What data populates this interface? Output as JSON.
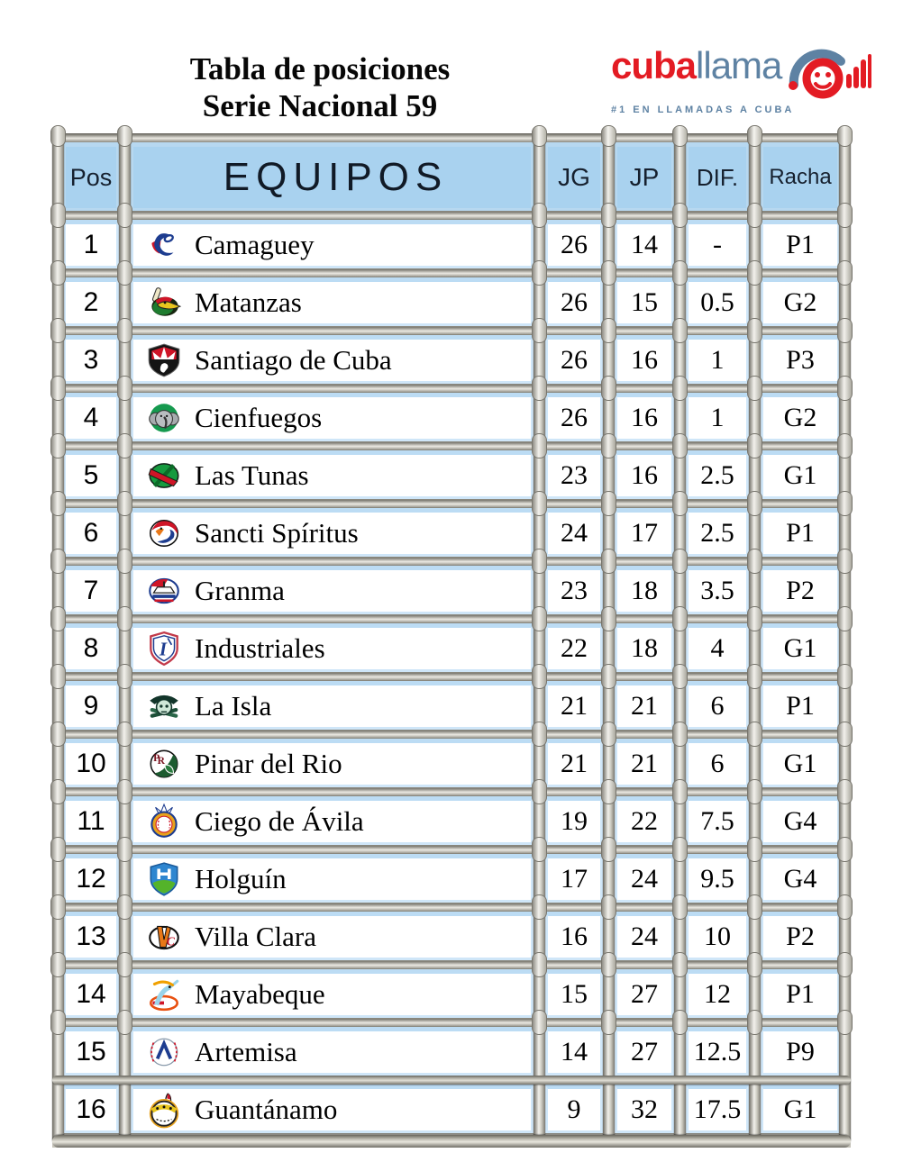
{
  "title": {
    "line1": "Tabla de posiciones",
    "line2": "Serie Nacional 59"
  },
  "brand": {
    "word_red": "cuba",
    "word_blue": "llama",
    "tagline": "#1 EN LLAMADAS A CUBA"
  },
  "colors": {
    "brand_red": "#e31b23",
    "brand_blue": "#5e82a3",
    "header_blue": "#a9d2ef",
    "frame_gray": "#c6c4ba"
  },
  "table": {
    "headers": {
      "pos": "Pos",
      "equipos": "EQUIPOS",
      "jg": "JG",
      "jp": "JP",
      "dif": "DIF.",
      "racha": "Racha"
    },
    "rows": [
      {
        "pos": "1",
        "team": "Camaguey",
        "jg": "26",
        "jp": "14",
        "dif": "-",
        "racha": "P1"
      },
      {
        "pos": "2",
        "team": "Matanzas",
        "jg": "26",
        "jp": "15",
        "dif": "0.5",
        "racha": "G2"
      },
      {
        "pos": "3",
        "team": "Santiago de Cuba",
        "jg": "26",
        "jp": "16",
        "dif": "1",
        "racha": "P3"
      },
      {
        "pos": "4",
        "team": "Cienfuegos",
        "jg": "26",
        "jp": "16",
        "dif": "1",
        "racha": "G2"
      },
      {
        "pos": "5",
        "team": "Las Tunas",
        "jg": "23",
        "jp": "16",
        "dif": "2.5",
        "racha": "G1"
      },
      {
        "pos": "6",
        "team": "Sancti Spíritus",
        "jg": "24",
        "jp": "17",
        "dif": "2.5",
        "racha": "P1"
      },
      {
        "pos": "7",
        "team": "Granma",
        "jg": "23",
        "jp": "18",
        "dif": "3.5",
        "racha": "P2"
      },
      {
        "pos": "8",
        "team": "Industriales",
        "jg": "22",
        "jp": "18",
        "dif": "4",
        "racha": "G1"
      },
      {
        "pos": "9",
        "team": "La Isla",
        "jg": "21",
        "jp": "21",
        "dif": "6",
        "racha": "P1"
      },
      {
        "pos": "10",
        "team": "Pinar del Rio",
        "jg": "21",
        "jp": "21",
        "dif": "6",
        "racha": "G1"
      },
      {
        "pos": "11",
        "team": "Ciego de Ávila",
        "jg": "19",
        "jp": "22",
        "dif": "7.5",
        "racha": "G4"
      },
      {
        "pos": "12",
        "team": "Holguín",
        "jg": "17",
        "jp": "24",
        "dif": "9.5",
        "racha": "G4"
      },
      {
        "pos": "13",
        "team": "Villa Clara",
        "jg": "16",
        "jp": "24",
        "dif": "10",
        "racha": "P2"
      },
      {
        "pos": "14",
        "team": "Mayabeque",
        "jg": "15",
        "jp": "27",
        "dif": "12",
        "racha": "P1"
      },
      {
        "pos": "15",
        "team": "Artemisa",
        "jg": "14",
        "jp": "27",
        "dif": "12.5",
        "racha": "P9"
      },
      {
        "pos": "16",
        "team": "Guantánamo",
        "jg": "9",
        "jp": "32",
        "dif": "17.5",
        "racha": "G1"
      }
    ]
  },
  "chart_data": {
    "type": "table",
    "title": "Tabla de posiciones Serie Nacional 59",
    "columns": [
      "Pos",
      "EQUIPOS",
      "JG",
      "JP",
      "DIF.",
      "Racha"
    ],
    "rows": [
      [
        1,
        "Camaguey",
        26,
        14,
        "-",
        "P1"
      ],
      [
        2,
        "Matanzas",
        26,
        15,
        0.5,
        "G2"
      ],
      [
        3,
        "Santiago de Cuba",
        26,
        16,
        1,
        "P3"
      ],
      [
        4,
        "Cienfuegos",
        26,
        16,
        1,
        "G2"
      ],
      [
        5,
        "Las Tunas",
        23,
        16,
        2.5,
        "G1"
      ],
      [
        6,
        "Sancti Spíritus",
        24,
        17,
        2.5,
        "P1"
      ],
      [
        7,
        "Granma",
        23,
        18,
        3.5,
        "P2"
      ],
      [
        8,
        "Industriales",
        22,
        18,
        4,
        "G1"
      ],
      [
        9,
        "La Isla",
        21,
        21,
        6,
        "P1"
      ],
      [
        10,
        "Pinar del Rio",
        21,
        21,
        6,
        "G1"
      ],
      [
        11,
        "Ciego de Ávila",
        19,
        22,
        7.5,
        "G4"
      ],
      [
        12,
        "Holguín",
        17,
        24,
        9.5,
        "G4"
      ],
      [
        13,
        "Villa Clara",
        16,
        24,
        10,
        "P2"
      ],
      [
        14,
        "Mayabeque",
        15,
        27,
        12,
        "P1"
      ],
      [
        15,
        "Artemisa",
        14,
        27,
        12.5,
        "P9"
      ],
      [
        16,
        "Guantánamo",
        9,
        32,
        17.5,
        "G1"
      ]
    ]
  }
}
